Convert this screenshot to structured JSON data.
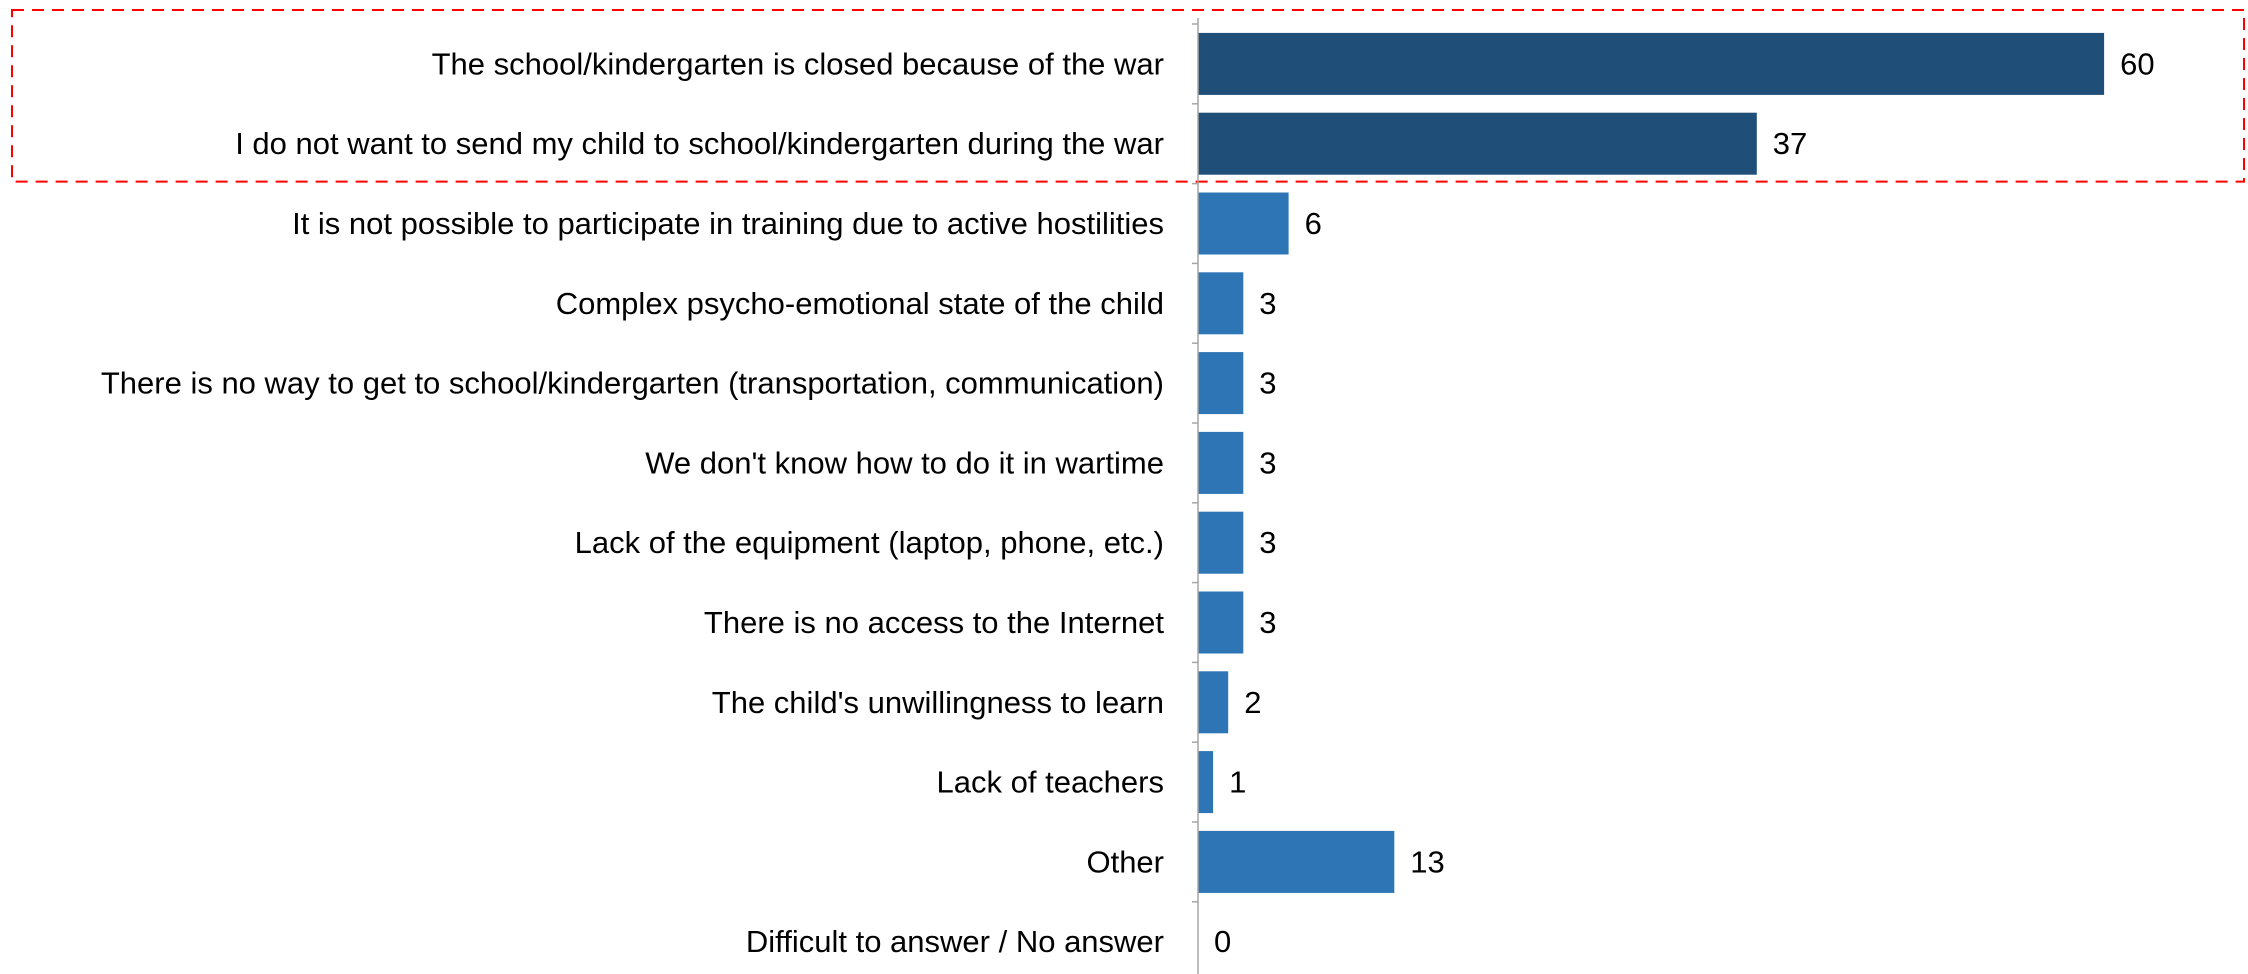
{
  "chart_data": {
    "type": "bar",
    "orientation": "horizontal",
    "categories": [
      "The school/kindergarten is closed because of the war",
      "I do not want to send my child to school/kindergarten during the war",
      "It is not possible to participate in training due to active hostilities",
      "Complex psycho-emotional state of the child",
      "There is no way to get to school/kindergarten (transportation, communication)",
      "We don't know how to do it in wartime",
      "Lack of the equipment (laptop, phone, etc.)",
      "There is no access to the Internet",
      "The child's unwillingness to learn",
      "Lack of teachers",
      "Other",
      "Difficult to answer / No answer"
    ],
    "values": [
      60,
      37,
      6,
      3,
      3,
      3,
      3,
      3,
      2,
      1,
      13,
      0
    ],
    "highlighted": [
      true,
      true,
      false,
      false,
      false,
      false,
      false,
      false,
      false,
      false,
      false,
      false
    ],
    "xlim": [
      0,
      69
    ],
    "grid": false,
    "legend": "none"
  },
  "colors": {
    "highlighted_bar": "#1f4e79",
    "normal_bar": "#2e75b6",
    "highlight_frame": "#ff0000",
    "axis": "#a6a6a6",
    "text": "#000000"
  }
}
